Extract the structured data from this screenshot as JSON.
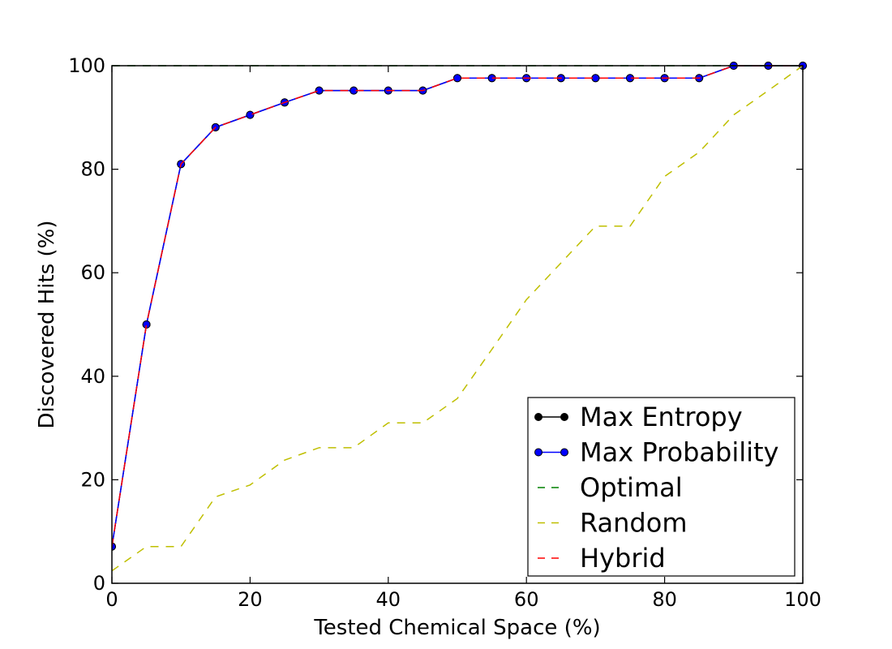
{
  "chart_data": {
    "type": "line",
    "xlabel": "Tested Chemical Space (%)",
    "ylabel": "Discovered Hits (%)",
    "xlim": [
      0,
      100
    ],
    "ylim": [
      0,
      100
    ],
    "xticks": [
      "0",
      "20",
      "40",
      "60",
      "80",
      "100"
    ],
    "yticks": [
      "0",
      "20",
      "40",
      "60",
      "80",
      "100"
    ],
    "grid": false,
    "legend_position": "bottom-right",
    "series": [
      {
        "name": "Max Entropy",
        "color": "#000000",
        "style": "solid-marker",
        "x": [
          0,
          5,
          10,
          15,
          20,
          25,
          30,
          35,
          40,
          45,
          50,
          55,
          60,
          65,
          70,
          75,
          80,
          85,
          90,
          95,
          100
        ],
        "y": [
          7.1,
          50,
          81,
          88.1,
          90.5,
          92.9,
          95.2,
          95.2,
          95.2,
          95.2,
          97.6,
          97.6,
          97.6,
          97.6,
          97.6,
          97.6,
          97.6,
          97.6,
          100,
          100,
          100
        ]
      },
      {
        "name": "Max Probability",
        "color": "#0000ff",
        "style": "solid-marker",
        "x": [
          0,
          5,
          10,
          15,
          20,
          25,
          30,
          35,
          40,
          45,
          50,
          55,
          60,
          65,
          70,
          75,
          80,
          85,
          90,
          95,
          100
        ],
        "y": [
          7.1,
          50,
          81,
          88.1,
          90.5,
          92.9,
          95.2,
          95.2,
          95.2,
          95.2,
          97.6,
          97.6,
          97.6,
          97.6,
          97.6,
          97.6,
          97.6,
          97.6,
          100,
          100,
          100
        ]
      },
      {
        "name": "Optimal",
        "color": "#008000",
        "style": "dashed",
        "x": [
          0,
          100
        ],
        "y": [
          100,
          100
        ]
      },
      {
        "name": "Random",
        "color": "#bfbf00",
        "style": "dashed",
        "x": [
          0,
          5,
          10,
          15,
          20,
          25,
          30,
          35,
          40,
          45,
          50,
          55,
          60,
          65,
          70,
          75,
          80,
          85,
          90,
          95,
          100
        ],
        "y": [
          2.4,
          7.1,
          7.1,
          16.7,
          19,
          23.8,
          26.2,
          26.2,
          31,
          31,
          35.7,
          45.2,
          54.8,
          61.9,
          69,
          69,
          78.6,
          83.3,
          90.5,
          95.2,
          100
        ]
      },
      {
        "name": "Hybrid",
        "color": "#ff0000",
        "style": "dashed",
        "x": [
          0,
          5,
          10,
          15,
          20,
          25,
          30,
          35,
          40,
          45,
          50,
          55,
          60,
          65,
          70,
          75,
          80,
          85,
          90,
          95,
          100
        ],
        "y": [
          7.1,
          50,
          81,
          88.1,
          90.5,
          92.9,
          95.2,
          95.2,
          95.2,
          95.2,
          97.6,
          97.6,
          97.6,
          97.6,
          97.6,
          97.6,
          97.6,
          97.6,
          100,
          100,
          100
        ]
      }
    ]
  }
}
